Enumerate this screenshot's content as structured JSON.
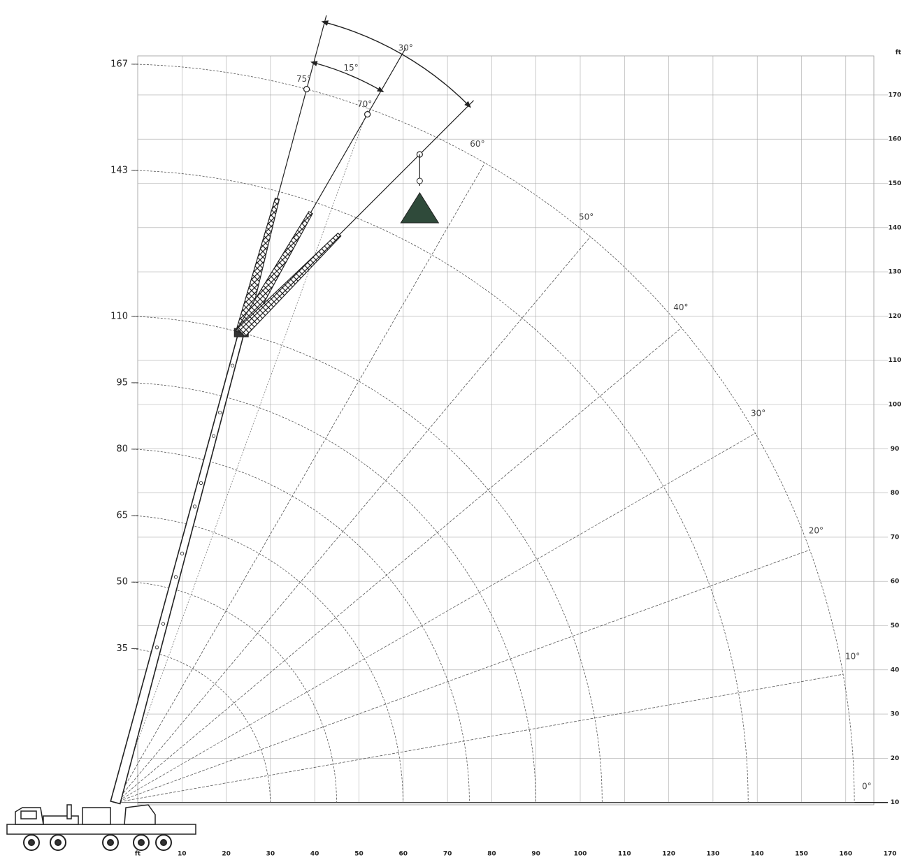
{
  "diagram": {
    "x_axis": {
      "unit": "ft",
      "ticks": [
        10,
        20,
        30,
        40,
        50,
        60,
        70,
        80,
        90,
        100,
        110,
        120,
        130,
        140,
        150,
        160,
        170
      ]
    },
    "y_axis": {
      "unit": "ft",
      "ticks": [
        10,
        20,
        30,
        40,
        50,
        60,
        70,
        80,
        90,
        100,
        110,
        120,
        130,
        140,
        150,
        160,
        170
      ]
    },
    "boom_lengths": [
      35,
      50,
      65,
      80,
      95,
      110,
      143,
      167
    ],
    "radius_angles": [
      {
        "value": 0,
        "label": "0°"
      },
      {
        "value": 10,
        "label": "10°"
      },
      {
        "value": 20,
        "label": "20°"
      },
      {
        "value": 30,
        "label": "30°"
      },
      {
        "value": 40,
        "label": "40°"
      },
      {
        "value": 50,
        "label": "50°"
      },
      {
        "value": 60,
        "label": "60°"
      }
    ],
    "tip_angles": [
      {
        "value": 75,
        "label": "75°"
      },
      {
        "value": 70,
        "label": "70°"
      }
    ],
    "jib_offsets": [
      {
        "value": 15,
        "label": "15°"
      },
      {
        "value": 30,
        "label": "30°"
      }
    ]
  }
}
